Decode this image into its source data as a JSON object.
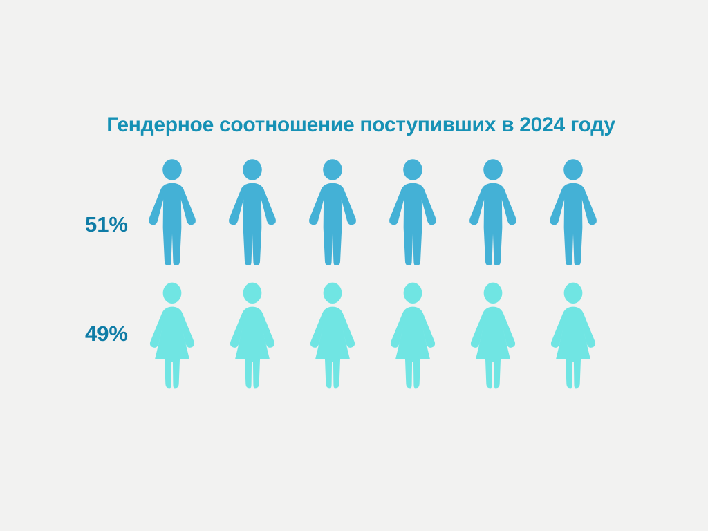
{
  "chart_data": {
    "type": "pictogram",
    "title": "Гендерное соотношение поступивших в 2024 году",
    "categories": [
      "male",
      "female"
    ],
    "values": [
      51,
      49
    ],
    "unit": "%",
    "legend": "none",
    "rows": [
      {
        "value": 51,
        "label": "51%",
        "icon": "man-icon",
        "icon_count": 6,
        "color": "#44b1d6"
      },
      {
        "value": 49,
        "label": "49%",
        "icon": "woman-icon",
        "icon_count": 6,
        "color": "#70e5e3"
      }
    ]
  },
  "colors": {
    "background": "#f2f2f1",
    "title": "#1691b5",
    "label": "#0f7ca6",
    "male": "#44b1d6",
    "female": "#70e5e3"
  }
}
